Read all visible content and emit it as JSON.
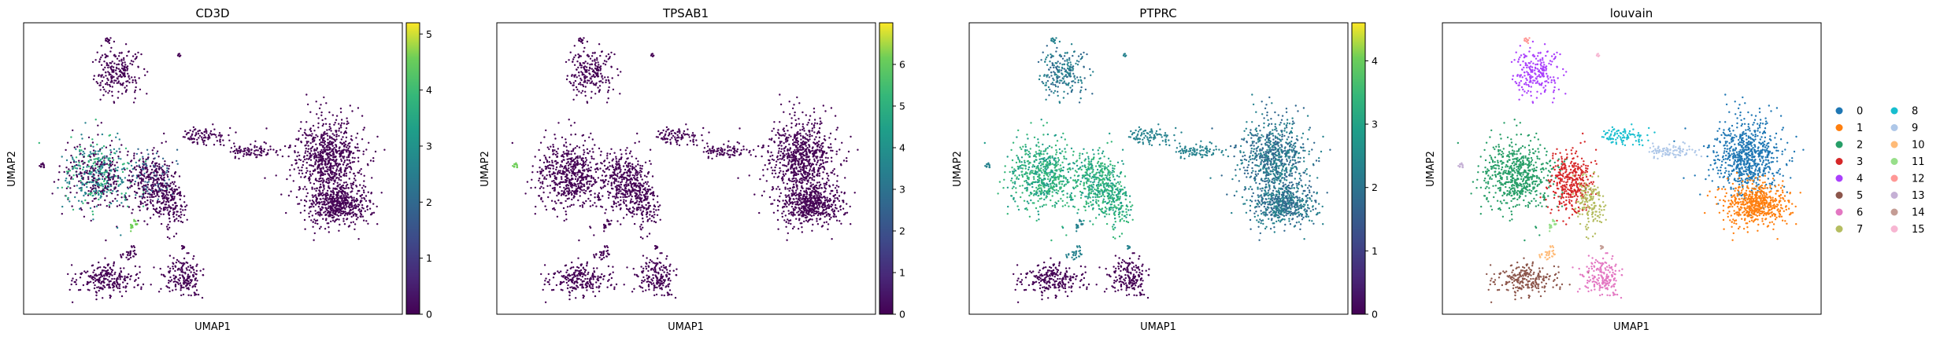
{
  "chart_data": [
    {
      "type": "scatter",
      "title": "CD3D",
      "xlabel": "UMAP1",
      "ylabel": "UMAP2",
      "color_scale": "viridis",
      "colorbar_range": [
        0,
        5.2
      ],
      "colorbar_ticks": [
        "0",
        "1",
        "2",
        "3",
        "4",
        "5"
      ],
      "grid": false
    },
    {
      "type": "scatter",
      "title": "TPSAB1",
      "xlabel": "UMAP1",
      "ylabel": "UMAP2",
      "color_scale": "viridis",
      "colorbar_range": [
        0,
        7
      ],
      "colorbar_ticks": [
        "0",
        "1",
        "2",
        "3",
        "4",
        "5",
        "6"
      ],
      "grid": false
    },
    {
      "type": "scatter",
      "title": "PTPRC",
      "xlabel": "UMAP1",
      "ylabel": "UMAP2",
      "color_scale": "viridis",
      "colorbar_range": [
        0,
        4.6
      ],
      "colorbar_ticks": [
        "0",
        "1",
        "2",
        "3",
        "4"
      ],
      "grid": false
    },
    {
      "type": "scatter",
      "title": "louvain",
      "xlabel": "UMAP1",
      "ylabel": "UMAP2",
      "legend_position": "right",
      "grid": false,
      "categories": [
        "0",
        "1",
        "2",
        "3",
        "4",
        "5",
        "6",
        "7",
        "8",
        "9",
        "10",
        "11",
        "12",
        "13",
        "14",
        "15"
      ],
      "category_colors": [
        "#1f77b4",
        "#ff7f0e",
        "#279e68",
        "#d62728",
        "#aa40fc",
        "#8c564b",
        "#e377c2",
        "#b5bd61",
        "#17becf",
        "#aec7e8",
        "#ffbb78",
        "#98df8a",
        "#ff9896",
        "#c5b0d5",
        "#c49c94",
        "#f7b6d2"
      ]
    }
  ],
  "colors": {
    "low": "#440154",
    "mid": "#21918c",
    "high": "#fde725"
  }
}
